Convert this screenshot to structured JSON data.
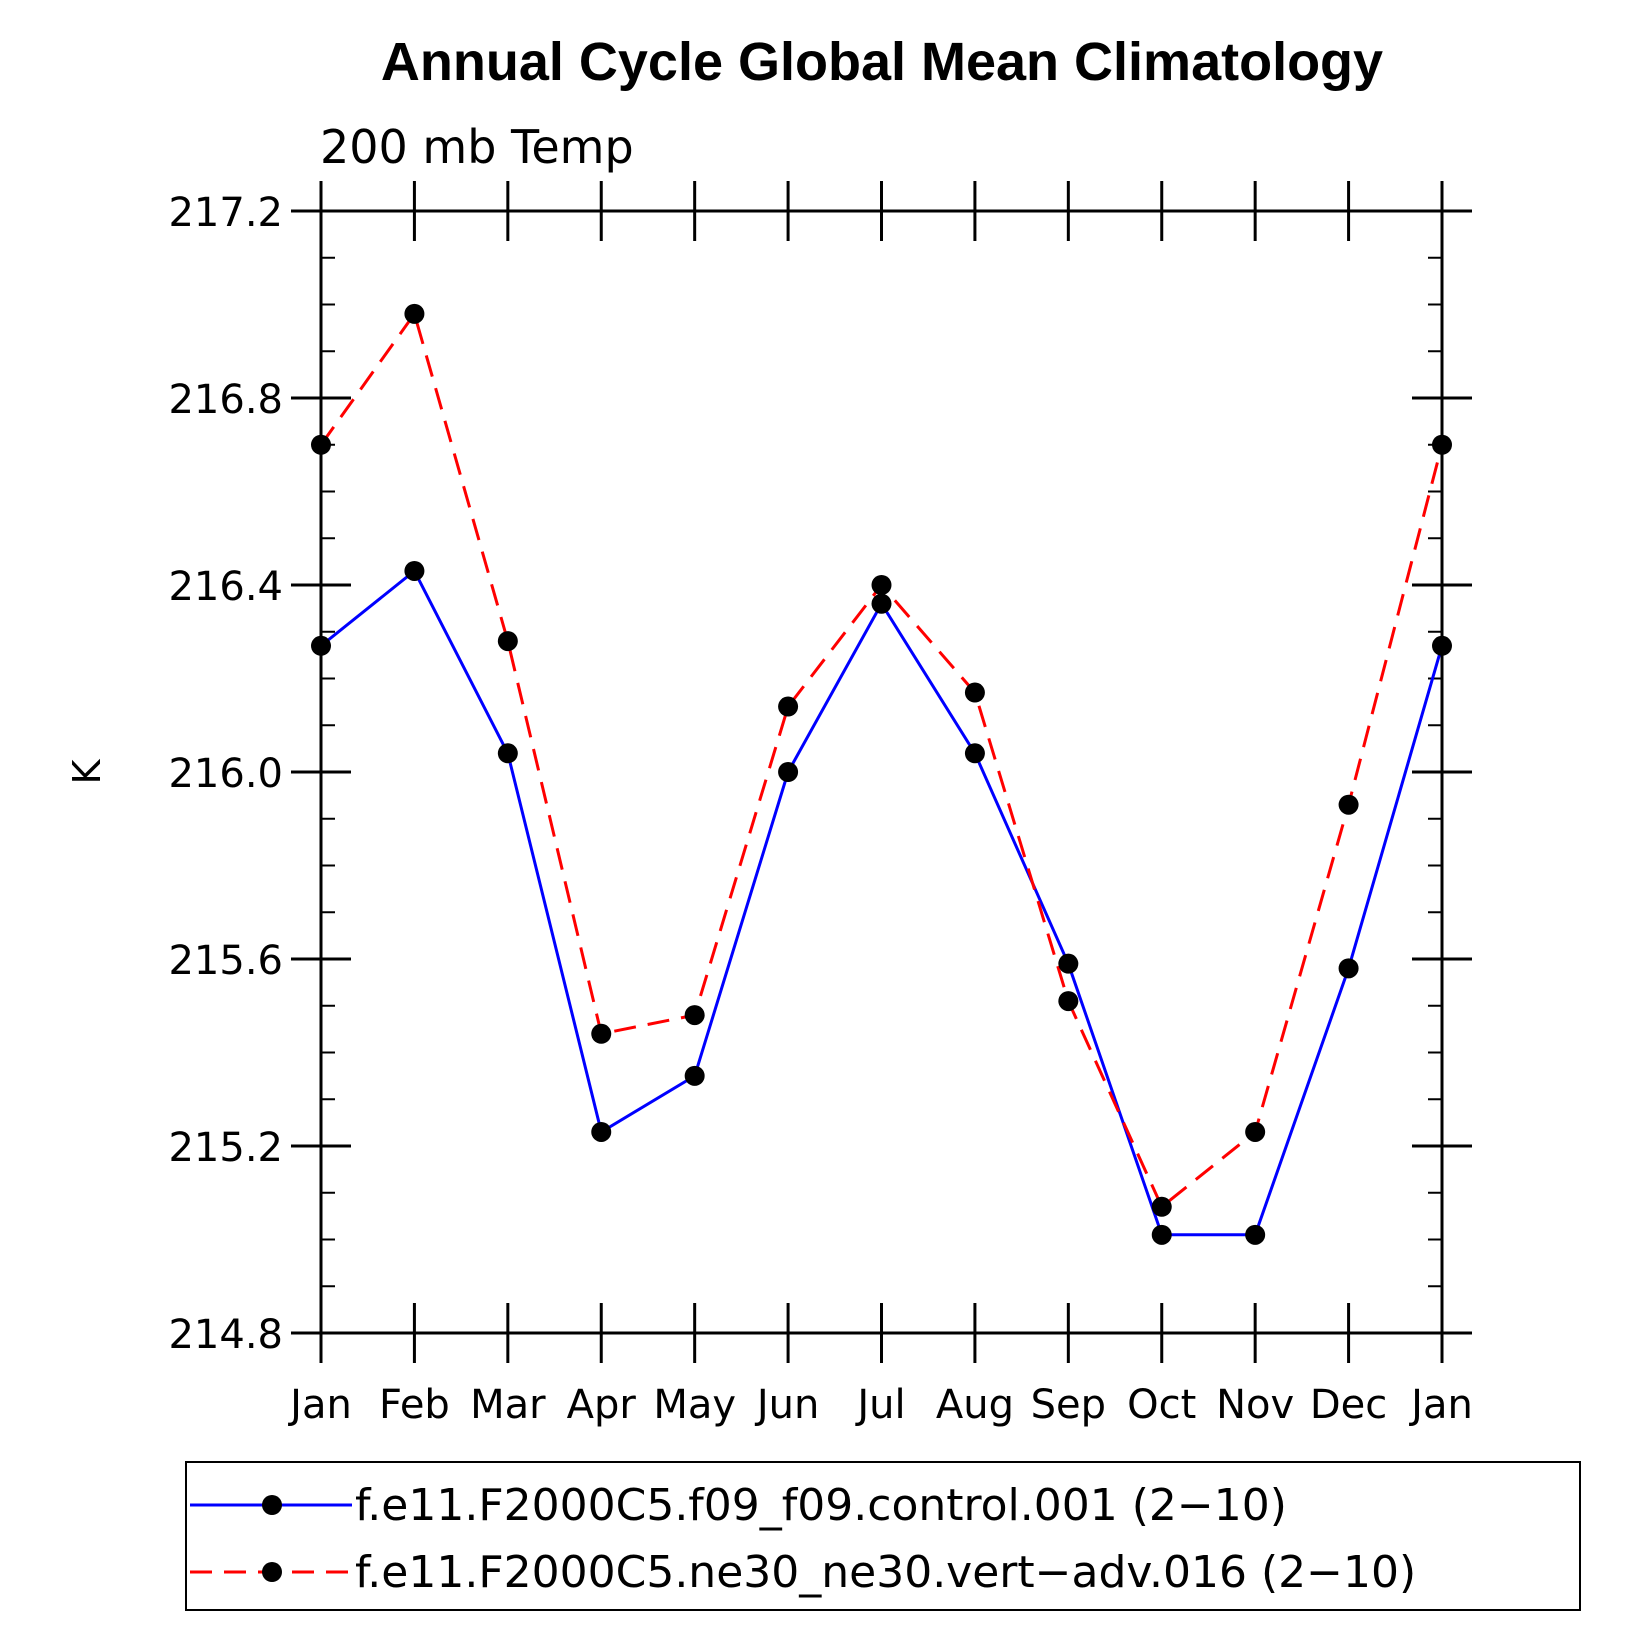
{
  "chart_data": {
    "type": "line",
    "title": "Annual Cycle Global Mean Climatology",
    "subtitle": "200 mb Temp",
    "ylabel": "K",
    "xlabel": "",
    "categories": [
      "Jan",
      "Feb",
      "Mar",
      "Apr",
      "May",
      "Jun",
      "Jul",
      "Aug",
      "Sep",
      "Oct",
      "Nov",
      "Dec",
      "Jan"
    ],
    "ylim": [
      214.8,
      217.2
    ],
    "yticks": [
      "214.8",
      "215.2",
      "215.6",
      "216.0",
      "216.4",
      "216.8",
      "217.2"
    ],
    "grid": false,
    "legend_position": "bottom",
    "series": [
      {
        "name": "f.e11.F2000C5.f09_f09.control.001 (2−10)",
        "color": "#0000ff",
        "line_style": "solid",
        "marker": "filled-circle",
        "values": [
          216.27,
          216.43,
          216.04,
          215.23,
          215.35,
          216.0,
          216.36,
          216.04,
          215.59,
          215.01,
          215.01,
          215.58,
          216.27
        ]
      },
      {
        "name": "f.e11.F2000C5.ne30_ne30.vert−adv.016 (2−10)",
        "color": "#ff0000",
        "line_style": "dashed",
        "marker": "filled-circle",
        "values": [
          216.7,
          216.98,
          216.28,
          215.44,
          215.48,
          216.14,
          216.4,
          216.17,
          215.51,
          215.07,
          215.23,
          215.93,
          216.7
        ]
      }
    ]
  }
}
